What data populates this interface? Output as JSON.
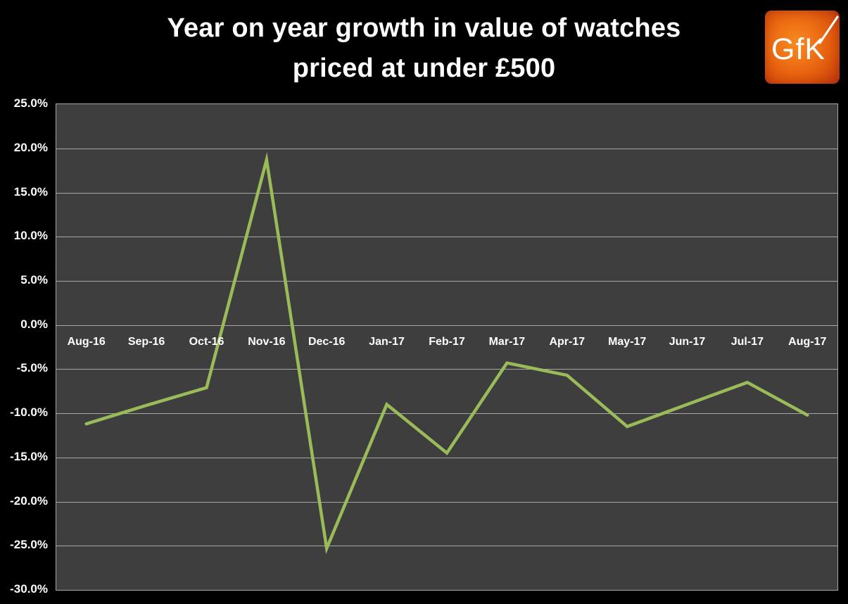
{
  "header": {
    "title_line1": "Year on year growth in value of watches",
    "title_line2": "priced at under £500",
    "logo_text": "GfK"
  },
  "colors": {
    "background": "#000000",
    "plot_background": "#3E3E3E",
    "gridline": "#A6A6A6",
    "series_line": "#9BBB59",
    "text": "#FFFFFF",
    "logo_center": "#F68B21",
    "logo_edge": "#B53A11"
  },
  "chart_data": {
    "type": "line",
    "title": "Year on year growth in value of watches priced at under £500",
    "categories": [
      "Aug-16",
      "Sep-16",
      "Oct-16",
      "Nov-16",
      "Dec-16",
      "Jan-17",
      "Feb-17",
      "Mar-17",
      "Apr-17",
      "May-17",
      "Jun-17",
      "Jul-17",
      "Aug-17"
    ],
    "series": [
      {
        "name": "Year on year growth in value of watches priced at under £500",
        "values": [
          -11.2,
          -9.1,
          -7.1,
          18.7,
          -25.3,
          -9.0,
          -14.5,
          -4.3,
          -5.7,
          -11.5,
          -9.0,
          -6.5,
          -10.2
        ]
      }
    ],
    "xlabel": "",
    "ylabel": "",
    "ylim": [
      -30,
      25
    ],
    "ytick_step": 5,
    "ytick_labels": [
      "25.0%",
      "20.0%",
      "15.0%",
      "10.0%",
      "5.0%",
      "0.0%",
      "-5.0%",
      "-10.0%",
      "-15.0%",
      "-20.0%",
      "-25.0%",
      "-30.0%"
    ],
    "grid": true,
    "legend": "none",
    "x_labels_position": "just below zero gridline"
  }
}
